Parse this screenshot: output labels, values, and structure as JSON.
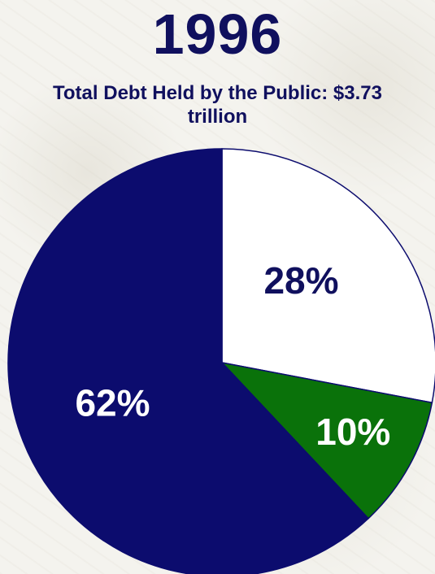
{
  "chart_data": {
    "type": "pie",
    "title": "1996",
    "subtitle": "Total Debt Held by the Public: $3.73 trillion",
    "slices": [
      {
        "label": "28%",
        "value": 28,
        "color": "#ffffff",
        "label_color": "#10105e"
      },
      {
        "label": "10%",
        "value": 10,
        "color": "#0a720a",
        "label_color": "#ffffff"
      },
      {
        "label": "62%",
        "value": 62,
        "color": "#0c0c6e",
        "label_color": "#ffffff"
      }
    ],
    "start": "12 o'clock",
    "direction": "clockwise",
    "legend": "none"
  }
}
